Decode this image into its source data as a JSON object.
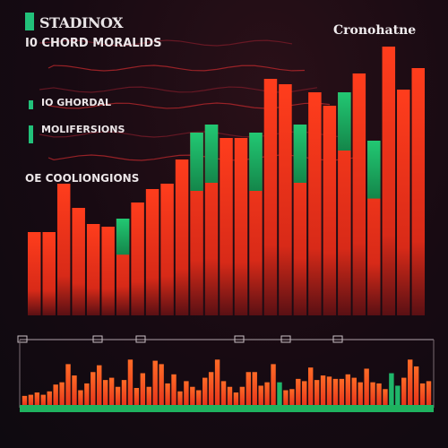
{
  "header": {
    "title": "STADINOX",
    "title_right": "Cronohatne"
  },
  "colors": {
    "up": "#1fb66a",
    "down": "#f0381c",
    "down_light": "#ff5a24",
    "accent": "#22c17a",
    "background": "#140b12"
  },
  "chart_data": [
    {
      "type": "bar",
      "title": "STADINOX",
      "series": [
        {
          "values": [
            31,
            31,
            49,
            40,
            34,
            33,
            36,
            42,
            47,
            49,
            58,
            68,
            71,
            66,
            66,
            68,
            88,
            86,
            71,
            83,
            78,
            83,
            90,
            65,
            100,
            84,
            92
          ],
          "colors": [
            "down",
            "down",
            "down",
            "down",
            "down",
            "down",
            "up",
            "down",
            "down",
            "down",
            "down",
            "up",
            "up",
            "down",
            "down",
            "up",
            "down",
            "down",
            "up",
            "down",
            "down",
            "up",
            "down",
            "up",
            "down",
            "down",
            "down"
          ]
        }
      ],
      "ylim": [
        0,
        100
      ],
      "annotations": [
        "I0 CHORD MORALIDS",
        "IO GHORDAL",
        "MOLIFERSIONS",
        "OE COOLIONGIONS"
      ]
    },
    {
      "type": "bar",
      "series": [
        {
          "values": [
            8,
            9,
            11,
            9,
            12,
            18,
            20,
            36,
            26,
            13,
            19,
            29,
            35,
            22,
            24,
            16,
            22,
            40,
            15,
            28,
            16,
            39,
            36,
            19,
            27,
            12,
            21,
            16,
            13,
            24,
            29,
            40,
            21,
            16,
            11,
            16,
            29,
            29,
            17,
            20,
            36,
            20,
            13,
            14,
            23,
            21,
            33,
            22,
            26,
            25,
            23,
            23,
            27,
            24,
            20,
            32,
            20,
            19,
            14,
            28,
            17,
            24,
            40,
            34,
            19,
            21
          ],
          "up_index": [
            41,
            59,
            60
          ]
        }
      ],
      "ylim": [
        0,
        45
      ]
    }
  ]
}
